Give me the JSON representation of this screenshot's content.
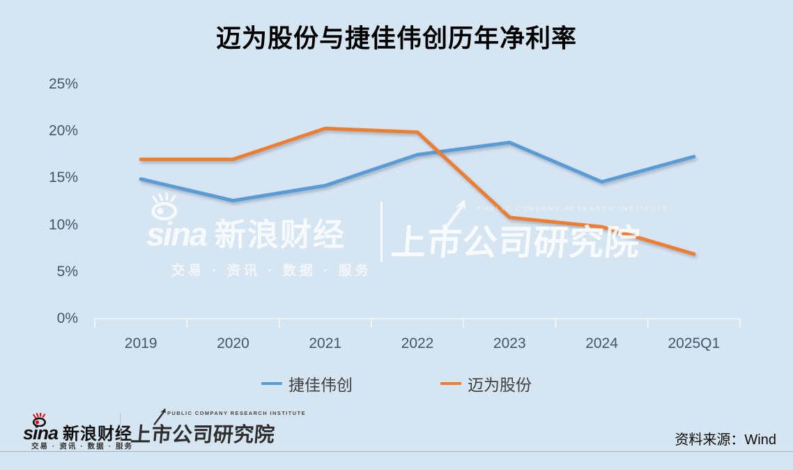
{
  "colors": {
    "background": "#D6E5F2",
    "blue": "#5B9BD5",
    "orange": "#ED7D31",
    "axis_text": "#44546A"
  },
  "chart_data": {
    "type": "line",
    "title": "迈为股份与捷佳伟创历年净利率",
    "categories": [
      "2019",
      "2020",
      "2021",
      "2022",
      "2023",
      "2024",
      "2025Q1"
    ],
    "series": [
      {
        "name": "捷佳伟创",
        "color": "#5B9BD5",
        "values": [
          14.9,
          12.6,
          14.2,
          17.5,
          18.8,
          14.6,
          17.3
        ]
      },
      {
        "name": "迈为股份",
        "color": "#ED7D31",
        "values": [
          17.0,
          17.0,
          20.3,
          19.9,
          10.8,
          9.8,
          6.9
        ]
      }
    ],
    "xlabel": "",
    "ylabel": "",
    "ylim": [
      0,
      25
    ],
    "ytick_step": 5,
    "ytick_labels": [
      "0%",
      "5%",
      "10%",
      "15%",
      "20%",
      "25%"
    ],
    "grid": false,
    "legend_position": "bottom"
  },
  "watermark": {
    "sina_word": "sina",
    "brand": "新浪财经",
    "tagline": "交易 · 资讯 · 数据 · 服务",
    "institute": "上市公司研究院",
    "institute_en": "PUBLIC COMPANY RESEARCH INSTITUTE"
  },
  "footer": {
    "sina_word": "sina",
    "brand": "新浪财经",
    "tagline": "交易 · 资讯 · 数据 · 服务",
    "institute": "上市公司研究院",
    "institute_en": "PUBLIC COMPANY RESEARCH INSTITUTE",
    "source": "资料来源：Wind"
  }
}
